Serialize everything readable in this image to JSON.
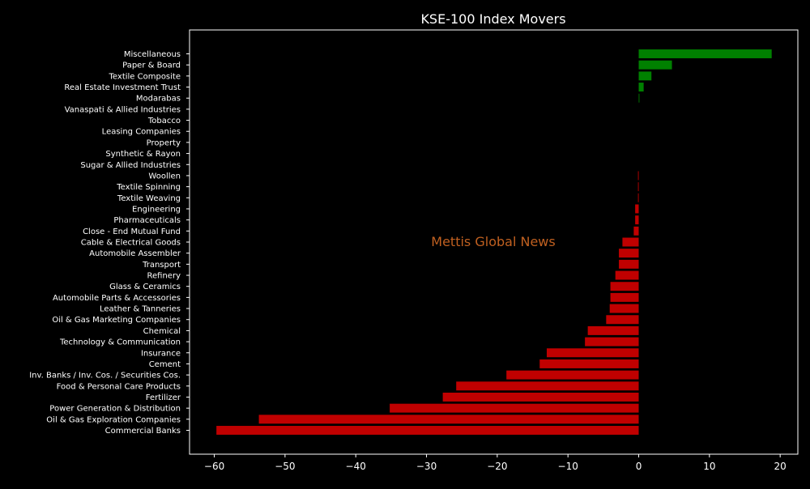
{
  "chart_data": {
    "type": "bar",
    "orientation": "horizontal",
    "title": "KSE-100 Index Movers",
    "watermark": "Mettis Global News",
    "xlabel": "",
    "ylabel": "",
    "xlim": [
      -63.5,
      22.5
    ],
    "xticks": [
      -60,
      -50,
      -40,
      -30,
      -20,
      -10,
      0,
      10,
      20
    ],
    "xtick_labels": [
      "−60",
      "−50",
      "−40",
      "−30",
      "−20",
      "−10",
      "0",
      "10",
      "20"
    ],
    "grid": false,
    "categories": [
      "Miscellaneous",
      "Paper & Board",
      "Textile Composite",
      "Real Estate Investment Trust",
      "Modarabas",
      "Vanaspati & Allied Industries",
      "Tobacco",
      "Leasing Companies",
      "Property",
      "Synthetic & Rayon",
      "Sugar & Allied Industries",
      "Woollen",
      "Textile Spinning",
      "Textile Weaving",
      "Engineering",
      "Pharmaceuticals",
      "Close - End Mutual Fund",
      "Cable & Electrical Goods",
      "Automobile Assembler",
      "Transport",
      "Refinery",
      "Glass & Ceramics",
      "Automobile Parts & Accessories",
      "Leather & Tanneries",
      "Oil & Gas Marketing Companies",
      "Chemical",
      "Technology & Communication",
      "Insurance",
      "Cement",
      "Inv. Banks / Inv. Cos. / Securities Cos.",
      "Food & Personal Care Products",
      "Fertilizer",
      "Power Generation & Distribution",
      "Oil & Gas Exploration Companies",
      "Commercial Banks"
    ],
    "values": [
      18.8,
      4.7,
      1.8,
      0.7,
      0.1,
      0,
      0,
      0,
      0,
      0,
      0,
      -0.1,
      -0.1,
      -0.1,
      -0.5,
      -0.5,
      -0.7,
      -2.3,
      -2.8,
      -2.8,
      -3.3,
      -4.0,
      -4.0,
      -4.1,
      -4.6,
      -7.2,
      -7.6,
      -13.0,
      -14.0,
      -18.7,
      -25.8,
      -27.7,
      -35.2,
      -53.7,
      -59.7
    ],
    "colors": {
      "positive": "#008000",
      "negative": "#c00000",
      "background": "#000000",
      "axes": "#ffffff",
      "text": "#ffffff",
      "watermark": "#c06020"
    }
  }
}
